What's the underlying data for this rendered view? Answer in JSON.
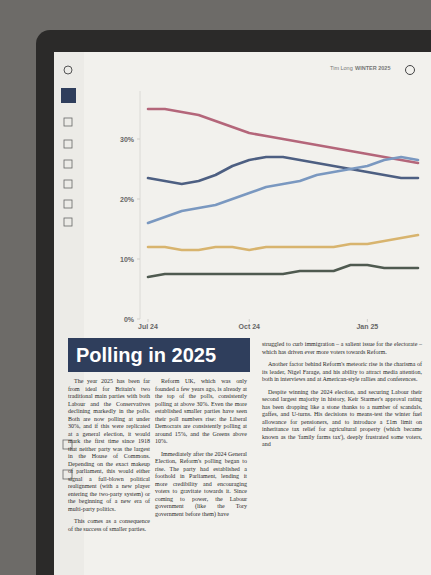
{
  "chart_data": {
    "type": "line",
    "categories": [
      "Jul 24",
      null,
      null,
      null,
      null,
      null,
      "Oct 24",
      null,
      null,
      null,
      null,
      null,
      null,
      "Jan 25",
      null,
      null,
      null
    ],
    "series": [
      {
        "color": "#b4667a",
        "values": [
          35,
          35,
          34.5,
          34,
          33,
          32,
          31,
          30.5,
          30,
          29.5,
          29,
          28.5,
          28,
          27.5,
          27,
          26.5,
          26
        ]
      },
      {
        "color": "#4d5f82",
        "values": [
          23.5,
          23,
          22.5,
          23,
          24,
          25.5,
          26.5,
          27,
          27,
          26.5,
          26,
          25.5,
          25,
          24.5,
          24,
          23.5,
          23.5
        ]
      },
      {
        "color": "#7a98c0",
        "values": [
          16,
          17,
          18,
          18.5,
          19,
          20,
          21,
          22,
          22.5,
          23,
          24,
          24.5,
          25,
          25.5,
          26.5,
          27,
          26.5
        ]
      },
      {
        "color": "#d8b46e",
        "values": [
          12,
          12,
          11.5,
          11.5,
          12,
          12,
          11.5,
          12,
          12,
          12,
          12,
          12,
          12.5,
          12.5,
          13,
          13.5,
          14
        ]
      },
      {
        "color": "#4f5a50",
        "values": [
          7,
          7.5,
          7.5,
          7.5,
          7.5,
          7.5,
          7.5,
          7.5,
          7.5,
          8,
          8,
          8,
          9,
          9,
          8.5,
          8.5,
          8.5
        ]
      }
    ],
    "ylim": [
      0,
      38
    ],
    "yticks": [
      {
        "value": 0,
        "label": "0%"
      },
      {
        "value": 10,
        "label": "10%"
      },
      {
        "value": 20,
        "label": "20%"
      },
      {
        "value": 30,
        "label": "30%"
      }
    ],
    "grid": false
  },
  "page": {
    "header_author": "Tim Long",
    "header_issue": "WINTER 2025",
    "title": "Polling in 2025",
    "columns": [
      [
        "The year 2025 has been far from ideal for Britain's two traditional main parties with both Labour and the Conservatives declining markedly in the polls. Both are now polling at under 30%, and if this were replicated at a general election, it would mark the first time since 1918 that neither party was the largest in the House of Commons. Depending on the exact makeup of parliament, this would either signal a full-blown political realignment (with a new player entering the two-party system) or the beginning of a new era of multi-party politics.",
        "This comes as a consequence of the success of smaller parties."
      ],
      [
        "Reform UK, which was only founded a few years ago, is already at the top of the polls, consistently polling at above 30%. Even the more established smaller parties have seen their poll numbers rise: the Liberal Democrats are consistently polling at around 15%, and the Greens above 10%.",
        "Immediately after the 2024 General Election, Reform's polling began to rise. The party had established a foothold in Parliament, lending it more credibility and encouraging voters to gravitate towards it. Since coming to power, the Labour government (like the Tory government before them) have"
      ],
      [
        "struggled to curb immigration – a salient issue for the electorate – which has driven ever more voters towards Reform.",
        "Another factor behind Reform's meteoric rise is the charisma of its leader, Nigel Farage, and his ability to attract media attention, both in interviews and at American-style rallies and conferences.",
        "Despite winning the 2024 election, and securing Labour their second largest majority in history, Keir Starmer's approval rating has been dropping like a stone thanks to a number of scandals, gaffes, and U-turns. His decisions to means-test the winter fuel allowance for pensioners, and to introduce a £1m limit on inheritance tax relief for agricultural property (which became known as the 'family farms tax'), deeply frustrated some voters, and"
      ]
    ]
  }
}
